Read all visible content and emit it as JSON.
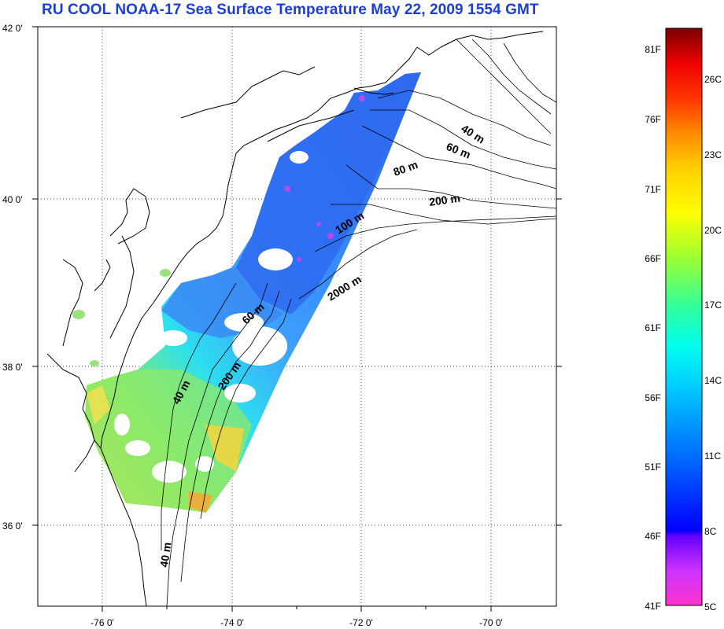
{
  "title": "RU COOL  NOAA-17 Sea Surface Temperature May 22, 2009 1554 GMT",
  "map": {
    "lat_labels": [
      "42 0'",
      "40 0'",
      "38 0'",
      "36 0'"
    ],
    "lon_labels": [
      "-76 0'",
      "-74 0'",
      "-72 0'",
      "-70 0'"
    ],
    "lat_range": [
      35.0,
      42.0
    ],
    "lon_range": [
      -77.0,
      -69.0
    ],
    "isobath_labels": [
      "40 m",
      "60 m",
      "80 m",
      "200 m",
      "100 m",
      "2000 m",
      "60 m",
      "200 m",
      "40 m",
      "40 m"
    ]
  },
  "colorbar": {
    "f_labels": [
      "81F",
      "76F",
      "71F",
      "66F",
      "61F",
      "56F",
      "51F",
      "46F",
      "41F"
    ],
    "c_labels": [
      "26C",
      "23C",
      "20C",
      "17C",
      "14C",
      "11C",
      "8C",
      "5C"
    ],
    "colors": [
      "#ff33cc",
      "#9933ff",
      "#0000ff",
      "#0099ff",
      "#00ffff",
      "#66ff66",
      "#ffff00",
      "#ff9900",
      "#ff0000",
      "#800000"
    ]
  }
}
